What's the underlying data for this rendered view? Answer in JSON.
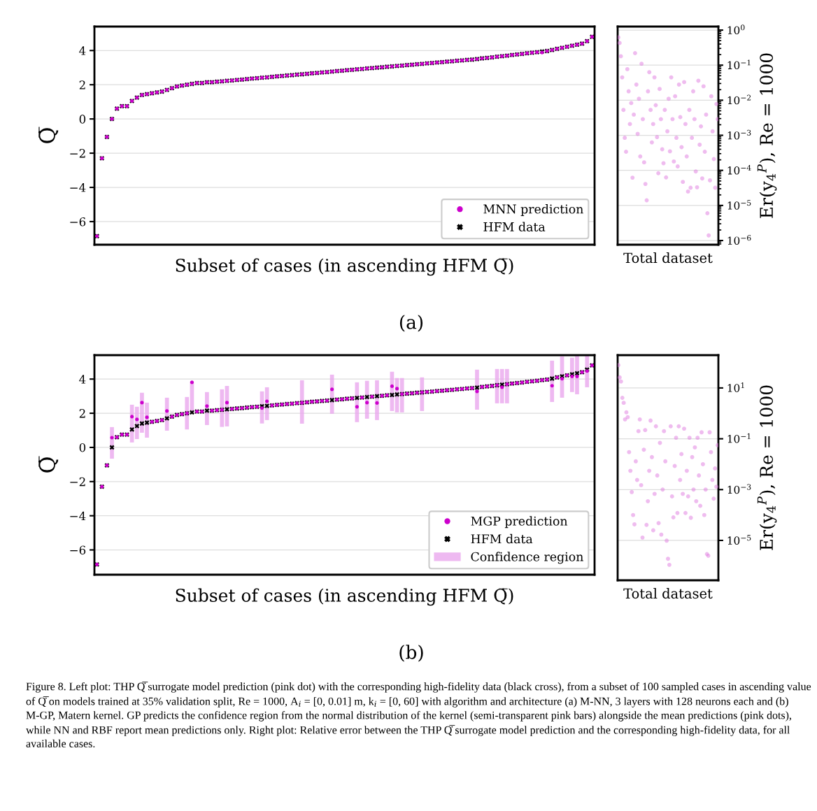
{
  "chart_data": [
    {
      "type": "scatter",
      "xlabel": "Subset of cases (in ascending HFM Q̇̅)",
      "ylabel": "Q̇̅",
      "categories": [
        null,
        null,
        null,
        null,
        null,
        null,
        null,
        null,
        null,
        null,
        null,
        null,
        null,
        null,
        null,
        null,
        null,
        null,
        null,
        null,
        null,
        null,
        null,
        null,
        null,
        null,
        null,
        null,
        null,
        null,
        null,
        null,
        null,
        null,
        null,
        null,
        null,
        null,
        null,
        null,
        null,
        null,
        null,
        null,
        null,
        null,
        null,
        null,
        null,
        null,
        null,
        null,
        null,
        null,
        null,
        null,
        null,
        null,
        null,
        null,
        null,
        null,
        null,
        null,
        null,
        null,
        null,
        null,
        null,
        null,
        null,
        null,
        null,
        null,
        null,
        null,
        null,
        null,
        null,
        null,
        null,
        null,
        null,
        null,
        null,
        null,
        null,
        null,
        null,
        null,
        null,
        null,
        null,
        null,
        null,
        null,
        null,
        null,
        null,
        null
      ],
      "series": [
        {
          "name": "MNN prediction",
          "color": "#cc00cc",
          "marker": "circle",
          "values": [
            -6.85,
            -2.3,
            -1.05,
            0.0,
            0.6,
            0.75,
            0.75,
            1.05,
            1.25,
            1.4,
            1.45,
            1.5,
            1.55,
            1.6,
            1.7,
            1.8,
            1.9,
            1.95,
            2.0,
            2.05,
            2.1,
            2.1,
            2.15,
            2.15,
            2.18,
            2.2,
            2.23,
            2.25,
            2.28,
            2.3,
            2.33,
            2.36,
            2.38,
            2.41,
            2.43,
            2.46,
            2.49,
            2.51,
            2.54,
            2.56,
            2.59,
            2.61,
            2.64,
            2.67,
            2.69,
            2.72,
            2.74,
            2.77,
            2.8,
            2.82,
            2.85,
            2.87,
            2.9,
            2.92,
            2.95,
            2.97,
            3.0,
            3.02,
            3.05,
            3.07,
            3.1,
            3.12,
            3.15,
            3.17,
            3.2,
            3.22,
            3.25,
            3.27,
            3.3,
            3.32,
            3.35,
            3.37,
            3.4,
            3.42,
            3.45,
            3.47,
            3.5,
            3.54,
            3.57,
            3.6,
            3.64,
            3.67,
            3.7,
            3.74,
            3.77,
            3.8,
            3.84,
            3.87,
            3.9,
            3.88,
            3.97,
            4.03,
            4.1,
            4.16,
            4.22,
            4.28,
            4.34,
            4.4,
            4.55,
            4.8
          ]
        },
        {
          "name": "HFM data",
          "color": "#000000",
          "marker": "cross",
          "values": [
            -6.85,
            -2.3,
            -1.05,
            0.0,
            0.6,
            0.75,
            0.75,
            1.05,
            1.25,
            1.4,
            1.45,
            1.5,
            1.55,
            1.6,
            1.7,
            1.8,
            1.9,
            1.95,
            2.0,
            2.05,
            2.1,
            2.1,
            2.15,
            2.15,
            2.18,
            2.2,
            2.23,
            2.25,
            2.28,
            2.3,
            2.33,
            2.36,
            2.38,
            2.41,
            2.43,
            2.46,
            2.49,
            2.51,
            2.54,
            2.56,
            2.59,
            2.61,
            2.64,
            2.67,
            2.69,
            2.72,
            2.74,
            2.77,
            2.8,
            2.82,
            2.85,
            2.87,
            2.9,
            2.92,
            2.95,
            2.97,
            3.0,
            3.02,
            3.05,
            3.07,
            3.1,
            3.12,
            3.15,
            3.17,
            3.2,
            3.22,
            3.25,
            3.27,
            3.3,
            3.32,
            3.35,
            3.37,
            3.4,
            3.42,
            3.45,
            3.47,
            3.5,
            3.54,
            3.57,
            3.6,
            3.64,
            3.67,
            3.7,
            3.74,
            3.77,
            3.8,
            3.84,
            3.87,
            3.9,
            3.94,
            3.97,
            4.03,
            4.1,
            4.16,
            4.22,
            4.28,
            4.34,
            4.4,
            4.55,
            4.8
          ]
        }
      ],
      "ylim": [
        -7.35,
        5.4
      ],
      "yticks": [
        {
          "value": -6,
          "label": "−6"
        },
        {
          "value": -4,
          "label": "−4"
        },
        {
          "value": -2,
          "label": "−2"
        },
        0,
        2,
        4
      ],
      "grid": "y",
      "legend": "bottom right",
      "annotations": [
        "(a)"
      ]
    },
    {
      "type": "scatter",
      "xlabel": "Total dataset",
      "y2label": "Er(y$_{4}$$^{P}$), Re = 1000",
      "log": "y2",
      "categories": [
        null,
        null,
        null,
        null,
        null,
        null,
        null,
        null,
        null,
        null,
        null,
        null,
        null,
        null,
        null,
        null,
        null,
        null,
        null,
        null,
        null,
        null,
        null,
        null,
        null,
        null,
        null,
        null,
        null,
        null,
        null,
        null,
        null,
        null,
        null,
        null,
        null,
        null,
        null,
        null,
        null,
        null,
        null,
        null,
        null,
        null,
        null,
        null,
        null,
        null,
        null,
        null,
        null,
        null,
        null,
        null,
        null,
        null,
        null,
        null,
        null,
        null,
        null,
        null,
        null,
        null,
        null,
        null,
        null,
        null,
        null,
        null,
        null,
        null,
        null,
        null,
        null,
        null
      ],
      "series": [
        {
          "color": "#e07ae0",
          "marker": "circle",
          "axis": "y2",
          "values": [
            0.62,
            0.43,
            0.18,
            0.045,
            0.0053,
            0.00085,
            0.00034,
            0.077,
            0.018,
            0.0021,
            0.0083,
            6.2e-05,
            0.0039,
            0.22,
            0.028,
            0.0011,
            0.011,
            0.00025,
            0.11,
            0.0029,
            0.00017,
            4.1e-05,
            1.4e-05,
            0.018,
            0.063,
            0.0053,
            0.00063,
            0.0021,
            0.045,
            0.0072,
            0.00089,
            8.3e-05,
            0.021,
            0.0029,
            0.0004,
            0.00016,
            0.0053,
            6.3e-05,
            0.0013,
            0.011,
            0.00035,
            0.045,
            0.0029,
            0.00018,
            0.013,
            0.00085,
            0.00013,
            0.028,
            0.0033,
            0.00046,
            4.7e-05,
            0.033,
            0.0021,
            0.00025,
            2.5e-05,
            0.0053,
            3.2e-05,
            0.00085,
            0.018,
            0.0029,
            9.3e-05,
            3.3e-05,
            0.036,
            0.00054,
            0.0018,
            5.9e-05,
            0.025,
            0.00034,
            0.0039,
            6e-06,
            1.4e-06,
            5.2e-05,
            0.013,
            0.0013,
            0.00021,
            3.2e-05,
            0.0078,
            0.0029
          ]
        }
      ],
      "y2lim": [
        7.6e-07,
        1.26
      ],
      "y2ticks": [
        {
          "value": 1,
          "label": "10$^{0}$"
        },
        {
          "value": 0.1,
          "label": "10$^{−1}$"
        },
        {
          "value": 0.01,
          "label": "10$^{−2}$"
        },
        {
          "value": 0.001,
          "label": "10$^{−3}$"
        },
        {
          "value": 0.0001,
          "label": "10$^{−4}$"
        },
        {
          "value": 1e-05,
          "label": "10$^{−5}$"
        },
        {
          "value": 1e-06,
          "label": "10$^{−6}$"
        }
      ],
      "grid": "y"
    },
    {
      "type": "scatter",
      "xlabel": "Subset of cases (in ascending HFM Q̇̅)",
      "ylabel": "Q̇̅",
      "categories": [
        null,
        null,
        null,
        null,
        null,
        null,
        null,
        null,
        null,
        null,
        null,
        null,
        null,
        null,
        null,
        null,
        null,
        null,
        null,
        null,
        null,
        null,
        null,
        null,
        null,
        null,
        null,
        null,
        null,
        null,
        null,
        null,
        null,
        null,
        null,
        null,
        null,
        null,
        null,
        null,
        null,
        null,
        null,
        null,
        null,
        null,
        null,
        null,
        null,
        null,
        null,
        null,
        null,
        null,
        null,
        null,
        null,
        null,
        null,
        null,
        null,
        null,
        null,
        null,
        null,
        null,
        null,
        null,
        null,
        null,
        null,
        null,
        null,
        null,
        null,
        null,
        null,
        null,
        null,
        null,
        null,
        null,
        null,
        null,
        null,
        null,
        null,
        null,
        null,
        null,
        null,
        null,
        null,
        null,
        null,
        null,
        null,
        null,
        null,
        null
      ],
      "series": [
        {
          "name": "MGP prediction",
          "color": "#cc00cc",
          "marker": "circle",
          "values": [
            -6.85,
            -2.3,
            -1.05,
            0.57,
            0.6,
            0.75,
            0.75,
            1.8,
            1.64,
            2.62,
            1.76,
            1.5,
            1.55,
            1.6,
            2.13,
            1.8,
            1.9,
            1.95,
            2.0,
            3.81,
            2.1,
            2.1,
            2.42,
            2.15,
            2.18,
            2.2,
            2.62,
            2.25,
            2.28,
            2.3,
            2.33,
            2.36,
            2.38,
            2.3,
            2.7,
            2.46,
            2.49,
            2.51,
            2.54,
            2.56,
            2.59,
            2.61,
            2.64,
            2.67,
            2.69,
            2.72,
            2.74,
            3.4,
            2.8,
            2.82,
            2.85,
            2.87,
            2.38,
            2.92,
            2.62,
            2.97,
            2.6,
            3.02,
            3.05,
            3.58,
            3.44,
            3.12,
            3.15,
            3.17,
            3.2,
            3.22,
            3.25,
            3.27,
            3.3,
            3.32,
            3.35,
            3.37,
            3.4,
            3.42,
            3.45,
            3.47,
            3.28,
            3.54,
            3.57,
            3.6,
            3.64,
            3.52,
            3.7,
            3.74,
            3.77,
            3.8,
            3.84,
            3.87,
            3.9,
            3.94,
            3.97,
            3.61,
            4.1,
            4.02,
            4.22,
            4.16,
            4.16,
            4.4,
            4.47,
            4.8
          ]
        },
        {
          "name": "HFM data",
          "color": "#000000",
          "marker": "cross",
          "values": [
            -6.85,
            -2.3,
            -1.05,
            0.0,
            0.6,
            0.75,
            0.75,
            1.05,
            1.25,
            1.4,
            1.45,
            1.5,
            1.55,
            1.6,
            1.7,
            1.8,
            1.9,
            1.95,
            2.0,
            2.05,
            2.1,
            2.1,
            2.15,
            2.15,
            2.18,
            2.2,
            2.23,
            2.25,
            2.28,
            2.3,
            2.33,
            2.36,
            2.38,
            2.41,
            2.43,
            2.46,
            2.49,
            2.51,
            2.54,
            2.56,
            2.59,
            2.61,
            2.64,
            2.67,
            2.69,
            2.72,
            2.74,
            2.77,
            2.8,
            2.82,
            2.85,
            2.87,
            2.9,
            2.92,
            2.95,
            2.97,
            3.0,
            3.02,
            3.05,
            3.07,
            3.1,
            3.12,
            3.15,
            3.17,
            3.2,
            3.22,
            3.25,
            3.27,
            3.3,
            3.32,
            3.35,
            3.37,
            3.4,
            3.42,
            3.45,
            3.47,
            3.5,
            3.54,
            3.57,
            3.6,
            3.64,
            3.67,
            3.7,
            3.74,
            3.77,
            3.8,
            3.84,
            3.87,
            3.9,
            3.94,
            3.97,
            4.03,
            4.1,
            4.16,
            4.22,
            4.28,
            4.34,
            4.4,
            4.55,
            4.8
          ]
        },
        {
          "name": "Confidence region",
          "type": "bar",
          "color": "#eaa8ee",
          "values": [
            null,
            null,
            null,
            1.85,
            null,
            null,
            null,
            2.21,
            1.89,
            2.34,
            2.05,
            null,
            null,
            null,
            1.93,
            null,
            null,
            null,
            1.9,
            1.85,
            null,
            null,
            1.93,
            null,
            null,
            2.2,
            2.37,
            null,
            null,
            null,
            null,
            null,
            null,
            1.88,
            1.92,
            null,
            null,
            null,
            null,
            null,
            null,
            2.54,
            null,
            null,
            null,
            null,
            null,
            2.29,
            null,
            null,
            null,
            null,
            2.33,
            null,
            2.22,
            null,
            2.33,
            null,
            null,
            2.3,
            2.01,
            2.01,
            null,
            null,
            null,
            1.97,
            null,
            null,
            null,
            null,
            null,
            null,
            null,
            null,
            null,
            null,
            2.34,
            null,
            null,
            null,
            2.01,
            2.01,
            2.01,
            null,
            null,
            null,
            null,
            null,
            null,
            null,
            null,
            2.42,
            null,
            2.42,
            null,
            2.01,
            2.29,
            null,
            1.88,
            null
          ],
          "base": [
            null,
            null,
            null,
            -0.66,
            null,
            null,
            null,
            0.29,
            0.49,
            0.86,
            0.57,
            null,
            null,
            null,
            0.98,
            null,
            null,
            null,
            1.05,
            2.0,
            null,
            null,
            1.31,
            null,
            null,
            1.2,
            1.23,
            null,
            null,
            null,
            null,
            null,
            null,
            1.4,
            1.6,
            null,
            null,
            null,
            null,
            null,
            null,
            1.39,
            null,
            null,
            null,
            null,
            null,
            1.97,
            null,
            null,
            null,
            null,
            1.48,
            null,
            1.68,
            null,
            1.6,
            null,
            null,
            2.13,
            2.05,
            2.05,
            null,
            null,
            null,
            2.13,
            null,
            null,
            null,
            null,
            null,
            null,
            null,
            null,
            null,
            null,
            2.21,
            null,
            null,
            null,
            2.58,
            2.58,
            2.58,
            null,
            null,
            null,
            null,
            null,
            null,
            null,
            null,
            2.66,
            null,
            2.91,
            null,
            3.24,
            3.11,
            null,
            3.52,
            null
          ]
        }
      ],
      "ylim": [
        -7.45,
        5.4
      ],
      "yticks": [
        {
          "value": -6,
          "label": "−6"
        },
        {
          "value": -4,
          "label": "−4"
        },
        {
          "value": -2,
          "label": "−2"
        },
        0,
        2,
        4
      ],
      "grid": "y",
      "legend": "bottom right",
      "annotations": [
        "(b)",
        "Figure 8. Left plot: THP Q̇̅ surrogate model prediction (pink dot) with the corresponding high-fidelity data (black cross), from a subset of 100 sampled cases in ascending value of Q̇̅ on models trained at 35% validation split, Re = 1000, A$_{i}$ = [0, 0.01] m, k$_{i}$ = [0, 60] with algorithm and architecture (a) M-NN, 3 layers with 128 neurons each and (b) M-GP, Matern kernel. GP predicts the confidence region from the normal distribution of the kernel (semi-transparent pink bars) alongside the mean predictions (pink dots), while NN and RBF report mean predictions only. Right plot: Relative error between the THP Q̇̅ surrogate model prediction and the corresponding high-fidelity data, for all available cases."
      ]
    },
    {
      "type": "scatter",
      "xlabel": "Total dataset",
      "y2label": "Er(y$_{4}$$^{P}$), Re = 1000",
      "log": "y2",
      "categories": [
        null,
        null,
        null,
        null,
        null,
        null,
        null,
        null,
        null,
        null,
        null,
        null,
        null,
        null,
        null,
        null,
        null,
        null,
        null,
        null,
        null,
        null,
        null,
        null,
        null,
        null,
        null,
        null,
        null,
        null,
        null,
        null,
        null,
        null,
        null,
        null,
        null,
        null,
        null,
        null,
        null,
        null,
        null,
        null,
        null,
        null,
        null,
        null,
        null,
        null,
        null,
        null,
        null,
        null,
        null,
        null,
        null,
        null,
        null,
        null,
        null,
        null,
        null,
        null,
        null,
        null,
        null,
        null,
        null,
        null,
        null,
        null,
        null,
        null,
        null
      ],
      "series": [
        {
          "color": "#e07ae0",
          "marker": "circle",
          "axis": "y2",
          "values": [
            79,
            26,
            18,
            4.1,
            2.6,
            0.58,
            1.1,
            0.71,
            0.03,
            0.0055,
            0.0008,
            0.0001,
            4.3e-05,
            0.013,
            0.0024,
            0.2,
            0.58,
            0.0015,
            1.3e-05,
            0.037,
            0.22,
            4.1e-05,
            0.00035,
            0.0055,
            0.52,
            0.019,
            2.5e-05,
            0.00068,
            0.31,
            0.0036,
            4.8e-05,
            0.069,
            1.7e-05,
            0.001,
            0.2,
            0.013,
            9.8e-06,
            1.9e-06,
            1.1e-06,
            0.31,
            0.00054,
            8.1e-05,
            0.0085,
            0.11,
            0.00012,
            0.31,
            0.0024,
            0.025,
            0.00068,
            0.25,
            0.00012,
            0.0055,
            0.00054,
            0.11,
            7.8e-05,
            0.019,
            0.001,
            0.046,
            0.00035,
            0.11,
            0.0036,
            0.00023,
            0.18,
            0.01,
            0.0001,
            0.001,
            2.9e-06,
            2.5e-06,
            0.18,
            0.03,
            0.0024,
            0.00044,
            0.0068,
            0.0013,
            0.056
          ]
        }
      ],
      "y2lim": [
        2.7e-07,
        195
      ],
      "y2ticks": [
        {
          "value": 10,
          "label": "10$^{1}$"
        },
        {
          "value": 0.1,
          "label": "10$^{−1}$"
        },
        {
          "value": 0.001,
          "label": "10$^{−3}$"
        },
        {
          "value": 1e-05,
          "label": "10$^{−5}$"
        }
      ],
      "grid": "y"
    }
  ]
}
